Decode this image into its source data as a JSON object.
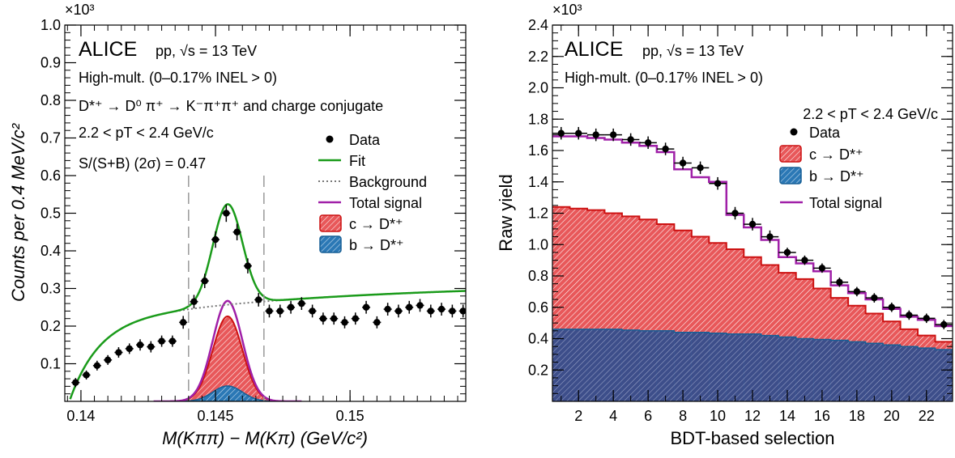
{
  "colors": {
    "fit": "#1a9b1a",
    "signal": "#a020a8",
    "charm_fill": "#e8585a",
    "charm_edge": "#cc1111",
    "beauty_fill": "#2b78b5",
    "beauty_edge": "#175f95",
    "background": "#777777",
    "gate": "#999999"
  },
  "chart_data": [
    {
      "type": "scatter",
      "exponent_label": "×10³",
      "xlabel": "M(Kππ) − M(Kπ) (GeV/c²)",
      "ylabel": "Counts per 0.4 MeV/c²",
      "xlim": [
        0.1394,
        0.1543
      ],
      "ylim": [
        0,
        1.0
      ],
      "xticks": [
        0.14,
        0.145,
        0.15
      ],
      "xtick_labels": [
        "0.14",
        "0.145",
        "0.15"
      ],
      "yticks": [
        0.1,
        0.2,
        0.3,
        0.4,
        0.5,
        0.6,
        0.7,
        0.8,
        0.9,
        1.0
      ],
      "ytick_labels": [
        "0.1",
        "0.2",
        "0.3",
        "0.4",
        "0.5",
        "0.6",
        "0.7",
        "0.8",
        "0.9",
        "1.0"
      ],
      "annotations": {
        "experiment": "ALICE",
        "system": "pp, √s = 13 TeV",
        "multiplicity": "High-mult. (0–0.17% INEL > 0)",
        "decay": "D*⁺ → D⁰ π⁺ → K⁻π⁺π⁺ and charge conjugate",
        "pt_range": "2.2 < pT < 2.4 GeV/c",
        "sb_ratio": "S/(S+B) (2σ) = 0.47"
      },
      "legend": [
        "Data",
        "Fit",
        "Background",
        "Total signal",
        "c → D*⁺",
        "b → D*⁺"
      ],
      "gates": [
        0.144,
        0.1468
      ],
      "data_x": [
        0.1398,
        0.1402,
        0.1406,
        0.141,
        0.1414,
        0.1418,
        0.1422,
        0.1426,
        0.143,
        0.1434,
        0.1438,
        0.1442,
        0.1446,
        0.145,
        0.1454,
        0.1458,
        0.1462,
        0.1466,
        0.147,
        0.1474,
        0.1478,
        0.1482,
        0.1486,
        0.149,
        0.1494,
        0.1498,
        0.1502,
        0.1506,
        0.151,
        0.1514,
        0.1518,
        0.1522,
        0.1526,
        0.153,
        0.1534,
        0.1538,
        0.1542
      ],
      "data_y": [
        0.05,
        0.07,
        0.095,
        0.11,
        0.13,
        0.14,
        0.15,
        0.145,
        0.16,
        0.16,
        0.21,
        0.265,
        0.32,
        0.43,
        0.5,
        0.45,
        0.36,
        0.27,
        0.24,
        0.24,
        0.25,
        0.26,
        0.24,
        0.22,
        0.22,
        0.21,
        0.22,
        0.25,
        0.21,
        0.245,
        0.24,
        0.25,
        0.255,
        0.24,
        0.245,
        0.24,
        0.24
      ],
      "data_yerr": [
        0.012,
        0.012,
        0.013,
        0.013,
        0.014,
        0.014,
        0.015,
        0.015,
        0.015,
        0.015,
        0.017,
        0.018,
        0.019,
        0.022,
        0.023,
        0.022,
        0.02,
        0.018,
        0.017,
        0.017,
        0.017,
        0.017,
        0.017,
        0.016,
        0.016,
        0.016,
        0.016,
        0.017,
        0.016,
        0.017,
        0.017,
        0.017,
        0.017,
        0.017,
        0.017,
        0.017,
        0.017
      ]
    },
    {
      "type": "bar",
      "exponent_label": "×10³",
      "xlabel": "BDT-based selection",
      "ylabel": "Raw yield",
      "xlim": [
        0.5,
        23.5
      ],
      "ylim": [
        0,
        2.4
      ],
      "xticks": [
        2,
        4,
        6,
        8,
        10,
        12,
        14,
        16,
        18,
        20,
        22
      ],
      "xtick_labels": [
        "2",
        "4",
        "6",
        "8",
        "10",
        "12",
        "14",
        "16",
        "18",
        "20",
        "22"
      ],
      "yticks": [
        0.2,
        0.4,
        0.6,
        0.8,
        1.0,
        1.2,
        1.4,
        1.6,
        1.8,
        2.0,
        2.2,
        2.4
      ],
      "ytick_labels": [
        "0.2",
        "0.4",
        "0.6",
        "0.8",
        "1.0",
        "1.2",
        "1.4",
        "1.6",
        "1.8",
        "2.0",
        "2.2",
        "2.4"
      ],
      "annotations": {
        "experiment": "ALICE",
        "system": "pp, √s = 13 TeV",
        "multiplicity": "High-mult. (0–0.17% INEL > 0)",
        "pt_range": "2.2 < pT < 2.4 GeV/c"
      },
      "legend": [
        "Data",
        "c → D*⁺",
        "b → D*⁺",
        "Total signal"
      ],
      "bin_width": 1.0,
      "x": [
        1,
        2,
        3,
        4,
        5,
        6,
        7,
        8,
        9,
        10,
        11,
        12,
        13,
        14,
        15,
        16,
        17,
        18,
        19,
        20,
        21,
        22,
        23
      ],
      "series": [
        {
          "name": "Data",
          "values": [
            1.71,
            1.71,
            1.7,
            1.7,
            1.67,
            1.65,
            1.61,
            1.52,
            1.49,
            1.39,
            1.2,
            1.13,
            1.05,
            0.95,
            0.9,
            0.85,
            0.76,
            0.7,
            0.66,
            0.6,
            0.55,
            0.53,
            0.49
          ],
          "errors": [
            0.04,
            0.04,
            0.04,
            0.04,
            0.04,
            0.04,
            0.04,
            0.04,
            0.04,
            0.04,
            0.04,
            0.04,
            0.04,
            0.03,
            0.03,
            0.03,
            0.03,
            0.03,
            0.03,
            0.03,
            0.03,
            0.03,
            0.03
          ]
        },
        {
          "name": "c → D*⁺",
          "values": [
            1.24,
            1.23,
            1.22,
            1.2,
            1.18,
            1.16,
            1.13,
            1.09,
            1.05,
            1.01,
            0.97,
            0.92,
            0.87,
            0.82,
            0.78,
            0.72,
            0.66,
            0.61,
            0.56,
            0.51,
            0.46,
            0.42,
            0.38
          ]
        },
        {
          "name": "b → D*⁺",
          "values": [
            0.46,
            0.46,
            0.46,
            0.46,
            0.455,
            0.45,
            0.45,
            0.44,
            0.44,
            0.435,
            0.43,
            0.43,
            0.42,
            0.41,
            0.4,
            0.395,
            0.39,
            0.38,
            0.37,
            0.36,
            0.35,
            0.34,
            0.33
          ]
        },
        {
          "name": "Total signal",
          "values": [
            1.69,
            1.69,
            1.68,
            1.67,
            1.65,
            1.63,
            1.59,
            1.48,
            1.43,
            1.4,
            1.19,
            1.11,
            1.03,
            0.92,
            0.88,
            0.83,
            0.74,
            0.69,
            0.65,
            0.59,
            0.54,
            0.52,
            0.48
          ]
        }
      ]
    }
  ]
}
